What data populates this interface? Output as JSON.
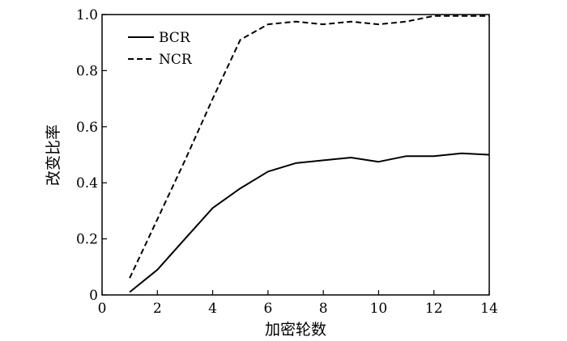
{
  "chart_data": {
    "type": "line",
    "title": "",
    "xlabel": "加密轮数",
    "ylabel": "改变比率",
    "xlim": [
      0,
      14
    ],
    "ylim": [
      0,
      1.0
    ],
    "xticks": [
      0,
      2,
      4,
      6,
      8,
      10,
      12,
      14
    ],
    "yticks": [
      0,
      0.2,
      0.4,
      0.6,
      0.8,
      1.0
    ],
    "ytick_labels": [
      "0",
      "0.2",
      "0.4",
      "0.6",
      "0.8",
      "1.0"
    ],
    "grid": false,
    "legend_position": "top-left",
    "series": [
      {
        "name": "BCR",
        "style": "solid",
        "color": "#000000",
        "x": [
          1,
          2,
          3,
          4,
          5,
          6,
          7,
          8,
          9,
          10,
          11,
          12,
          13,
          14
        ],
        "y": [
          0.01,
          0.09,
          0.2,
          0.31,
          0.38,
          0.44,
          0.47,
          0.48,
          0.49,
          0.475,
          0.495,
          0.495,
          0.505,
          0.5
        ]
      },
      {
        "name": "NCR",
        "style": "dashed",
        "color": "#000000",
        "x": [
          1,
          2,
          3,
          4,
          5,
          6,
          7,
          8,
          9,
          10,
          11,
          12,
          13,
          14
        ],
        "y": [
          0.06,
          0.27,
          0.48,
          0.7,
          0.91,
          0.965,
          0.975,
          0.965,
          0.975,
          0.965,
          0.975,
          0.995,
          0.995,
          0.995
        ]
      }
    ]
  }
}
